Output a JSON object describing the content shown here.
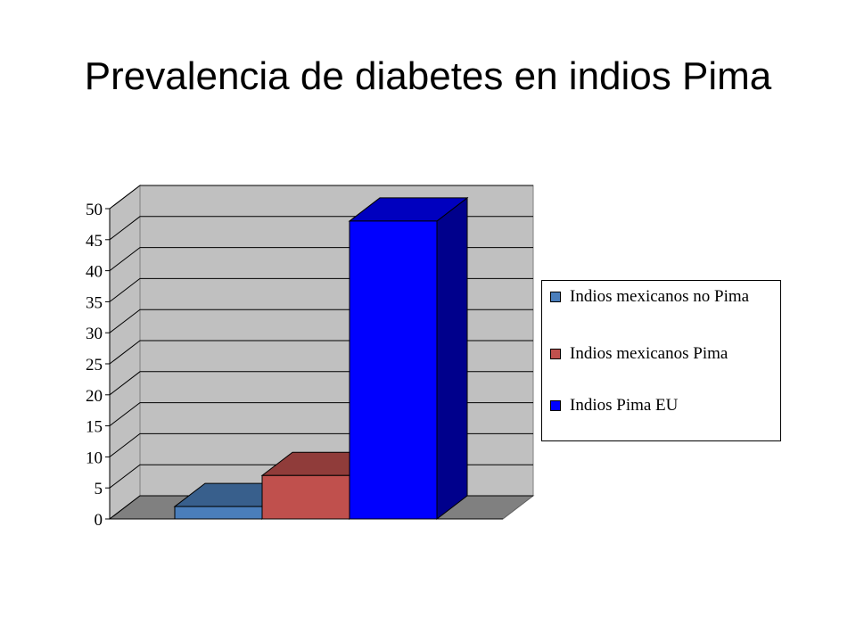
{
  "title": "Prevalencia de diabetes en indios Pima",
  "chart_data": {
    "type": "bar",
    "categories": [
      "Indios mexicanos no Pima",
      "Indios mexicanos Pima",
      "Indios Pima EU"
    ],
    "values": [
      2,
      7,
      48
    ],
    "colors": [
      "#4a7ebb",
      "#c0504d",
      "#0000ff"
    ],
    "ylim": [
      0,
      50
    ],
    "yticks": [
      "0",
      "5",
      "10",
      "15",
      "20",
      "25",
      "30",
      "35",
      "40",
      "45",
      "50"
    ],
    "grid": true,
    "legend_position": "right",
    "legend": [
      {
        "label": "Indios mexicanos no Pima",
        "color": "#4a7ebb"
      },
      {
        "label": "Indios mexicanos Pima",
        "color": "#c0504d"
      },
      {
        "label": "Indios Pima EU",
        "color": "#0000ff"
      }
    ],
    "style": "3d-column"
  }
}
